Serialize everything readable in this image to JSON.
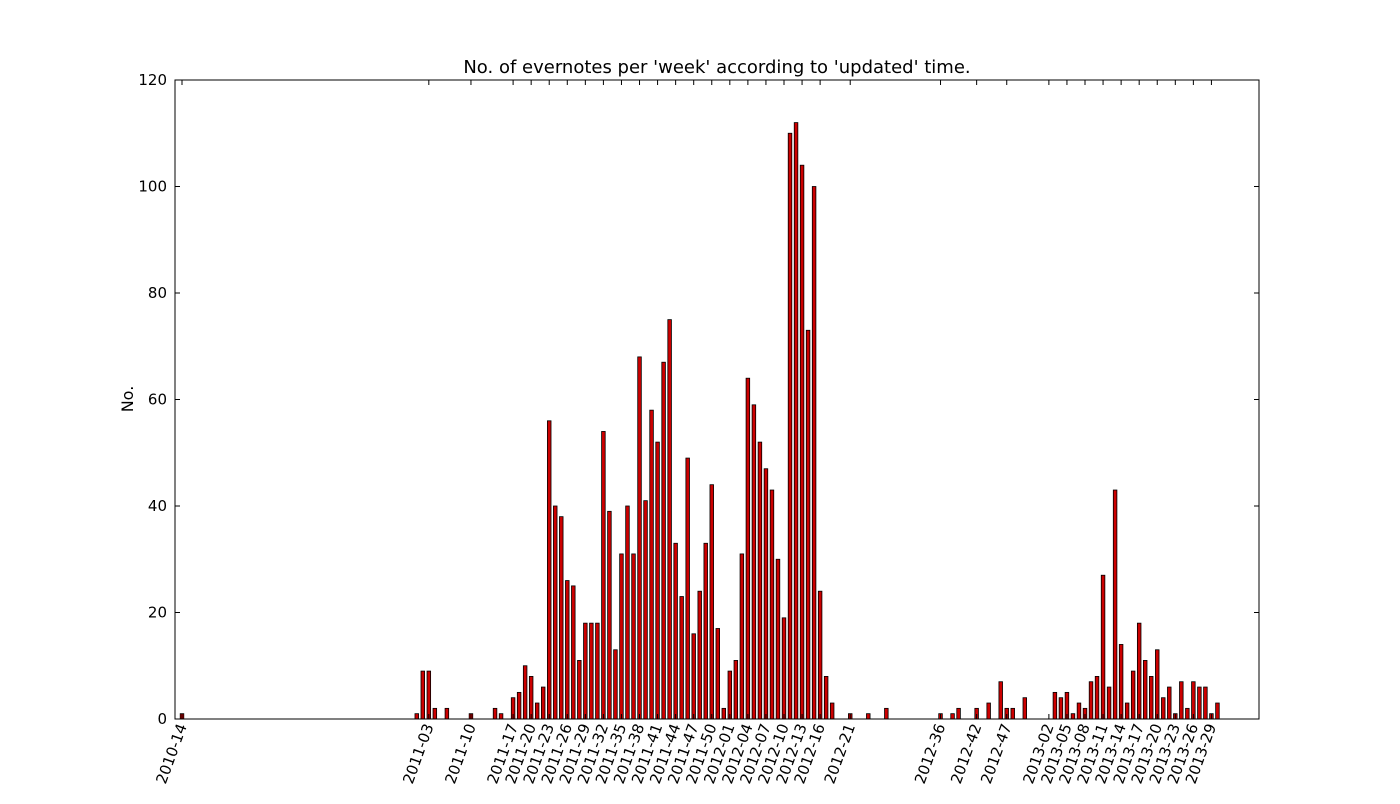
{
  "chart_data": {
    "type": "bar",
    "title": "No. of evernotes per 'week' according to 'updated' time.",
    "xlabel": "",
    "ylabel": "No.",
    "ylim": [
      0,
      120
    ],
    "yticks": [
      0,
      20,
      40,
      60,
      80,
      100,
      120
    ],
    "grid": false,
    "legend": "none",
    "bar_color": "#cc0000",
    "bar_edge_color": "#000000",
    "x_tick_labels": [
      {
        "week": 0,
        "label": "2010-14"
      },
      {
        "week": 41,
        "label": "2011-03"
      },
      {
        "week": 48,
        "label": "2011-10"
      },
      {
        "week": 55,
        "label": "2011-17"
      },
      {
        "week": 58,
        "label": "2011-20"
      },
      {
        "week": 61,
        "label": "2011-23"
      },
      {
        "week": 64,
        "label": "2011-26"
      },
      {
        "week": 67,
        "label": "2011-29"
      },
      {
        "week": 70,
        "label": "2011-32"
      },
      {
        "week": 73,
        "label": "2011-35"
      },
      {
        "week": 76,
        "label": "2011-38"
      },
      {
        "week": 79,
        "label": "2011-41"
      },
      {
        "week": 82,
        "label": "2011-44"
      },
      {
        "week": 85,
        "label": "2011-47"
      },
      {
        "week": 88,
        "label": "2011-50"
      },
      {
        "week": 91,
        "label": "2012-01"
      },
      {
        "week": 94,
        "label": "2012-04"
      },
      {
        "week": 97,
        "label": "2012-07"
      },
      {
        "week": 100,
        "label": "2012-10"
      },
      {
        "week": 103,
        "label": "2012-13"
      },
      {
        "week": 106,
        "label": "2012-16"
      },
      {
        "week": 111,
        "label": "2012-21"
      },
      {
        "week": 126,
        "label": "2012-36"
      },
      {
        "week": 132,
        "label": "2012-42"
      },
      {
        "week": 137,
        "label": "2012-47"
      },
      {
        "week": 144,
        "label": "2013-02"
      },
      {
        "week": 147,
        "label": "2013-05"
      },
      {
        "week": 150,
        "label": "2013-08"
      },
      {
        "week": 153,
        "label": "2013-11"
      },
      {
        "week": 156,
        "label": "2013-14"
      },
      {
        "week": 159,
        "label": "2013-17"
      },
      {
        "week": 162,
        "label": "2013-20"
      },
      {
        "week": 165,
        "label": "2013-23"
      },
      {
        "week": 168,
        "label": "2013-26"
      },
      {
        "week": 171,
        "label": "2013-29"
      }
    ],
    "bars": [
      {
        "week": 0,
        "value": 1
      },
      {
        "week": 39,
        "value": 1
      },
      {
        "week": 40,
        "value": 9
      },
      {
        "week": 41,
        "value": 9
      },
      {
        "week": 42,
        "value": 2
      },
      {
        "week": 44,
        "value": 2
      },
      {
        "week": 48,
        "value": 1
      },
      {
        "week": 52,
        "value": 2
      },
      {
        "week": 53,
        "value": 1
      },
      {
        "week": 55,
        "value": 4
      },
      {
        "week": 56,
        "value": 5
      },
      {
        "week": 57,
        "value": 10
      },
      {
        "week": 58,
        "value": 8
      },
      {
        "week": 59,
        "value": 3
      },
      {
        "week": 60,
        "value": 6
      },
      {
        "week": 61,
        "value": 56
      },
      {
        "week": 62,
        "value": 40
      },
      {
        "week": 63,
        "value": 38
      },
      {
        "week": 64,
        "value": 26
      },
      {
        "week": 65,
        "value": 25
      },
      {
        "week": 66,
        "value": 11
      },
      {
        "week": 67,
        "value": 18
      },
      {
        "week": 68,
        "value": 18
      },
      {
        "week": 69,
        "value": 18
      },
      {
        "week": 70,
        "value": 54
      },
      {
        "week": 71,
        "value": 39
      },
      {
        "week": 72,
        "value": 13
      },
      {
        "week": 73,
        "value": 31
      },
      {
        "week": 74,
        "value": 40
      },
      {
        "week": 75,
        "value": 31
      },
      {
        "week": 76,
        "value": 68
      },
      {
        "week": 77,
        "value": 41
      },
      {
        "week": 78,
        "value": 58
      },
      {
        "week": 79,
        "value": 52
      },
      {
        "week": 80,
        "value": 67
      },
      {
        "week": 81,
        "value": 75
      },
      {
        "week": 82,
        "value": 33
      },
      {
        "week": 83,
        "value": 23
      },
      {
        "week": 84,
        "value": 49
      },
      {
        "week": 85,
        "value": 16
      },
      {
        "week": 86,
        "value": 24
      },
      {
        "week": 87,
        "value": 33
      },
      {
        "week": 88,
        "value": 44
      },
      {
        "week": 89,
        "value": 17
      },
      {
        "week": 90,
        "value": 2
      },
      {
        "week": 91,
        "value": 9
      },
      {
        "week": 92,
        "value": 11
      },
      {
        "week": 93,
        "value": 31
      },
      {
        "week": 94,
        "value": 64
      },
      {
        "week": 95,
        "value": 59
      },
      {
        "week": 96,
        "value": 52
      },
      {
        "week": 97,
        "value": 47
      },
      {
        "week": 98,
        "value": 43
      },
      {
        "week": 99,
        "value": 30
      },
      {
        "week": 100,
        "value": 19
      },
      {
        "week": 101,
        "value": 110
      },
      {
        "week": 102,
        "value": 112
      },
      {
        "week": 103,
        "value": 104
      },
      {
        "week": 104,
        "value": 73
      },
      {
        "week": 105,
        "value": 100
      },
      {
        "week": 106,
        "value": 24
      },
      {
        "week": 107,
        "value": 8
      },
      {
        "week": 108,
        "value": 3
      },
      {
        "week": 111,
        "value": 1
      },
      {
        "week": 114,
        "value": 1
      },
      {
        "week": 117,
        "value": 2
      },
      {
        "week": 126,
        "value": 1
      },
      {
        "week": 128,
        "value": 1
      },
      {
        "week": 129,
        "value": 2
      },
      {
        "week": 132,
        "value": 2
      },
      {
        "week": 134,
        "value": 3
      },
      {
        "week": 136,
        "value": 7
      },
      {
        "week": 137,
        "value": 2
      },
      {
        "week": 138,
        "value": 2
      },
      {
        "week": 140,
        "value": 4
      },
      {
        "week": 145,
        "value": 5
      },
      {
        "week": 146,
        "value": 4
      },
      {
        "week": 147,
        "value": 5
      },
      {
        "week": 148,
        "value": 1
      },
      {
        "week": 149,
        "value": 3
      },
      {
        "week": 150,
        "value": 2
      },
      {
        "week": 151,
        "value": 7
      },
      {
        "week": 152,
        "value": 8
      },
      {
        "week": 153,
        "value": 27
      },
      {
        "week": 154,
        "value": 6
      },
      {
        "week": 155,
        "value": 43
      },
      {
        "week": 156,
        "value": 14
      },
      {
        "week": 157,
        "value": 3
      },
      {
        "week": 158,
        "value": 9
      },
      {
        "week": 159,
        "value": 18
      },
      {
        "week": 160,
        "value": 11
      },
      {
        "week": 161,
        "value": 8
      },
      {
        "week": 162,
        "value": 13
      },
      {
        "week": 163,
        "value": 4
      },
      {
        "week": 164,
        "value": 6
      },
      {
        "week": 165,
        "value": 1
      },
      {
        "week": 166,
        "value": 7
      },
      {
        "week": 167,
        "value": 2
      },
      {
        "week": 168,
        "value": 7
      },
      {
        "week": 169,
        "value": 6
      },
      {
        "week": 170,
        "value": 6
      },
      {
        "week": 171,
        "value": 1
      },
      {
        "week": 172,
        "value": 3
      }
    ]
  }
}
